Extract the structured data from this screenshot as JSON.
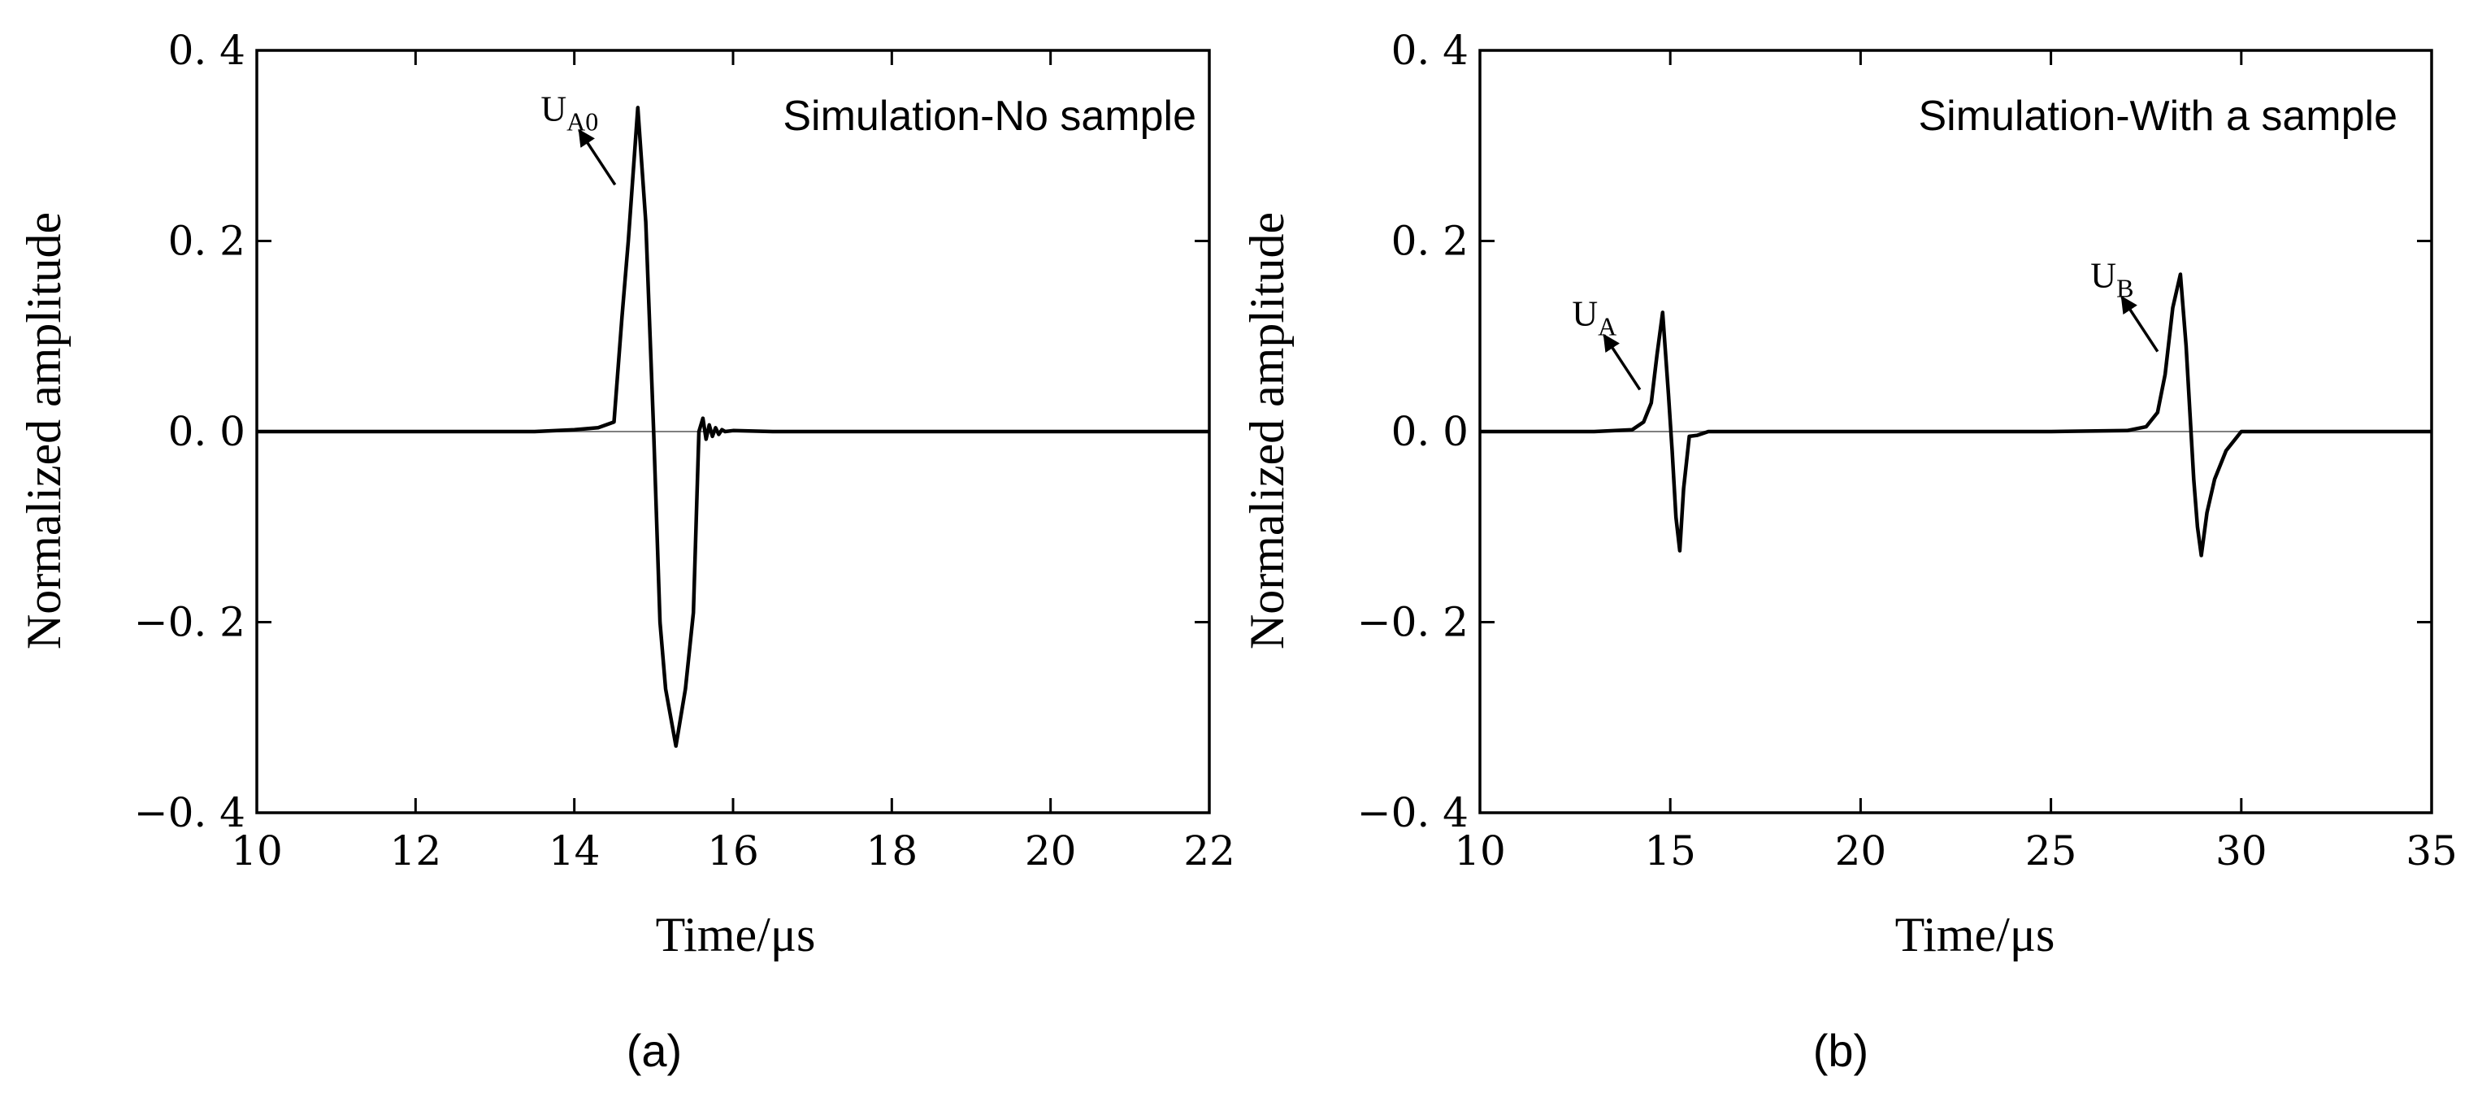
{
  "chart_data": [
    {
      "type": "line",
      "panel": "(a)",
      "title": "",
      "annotation": "Simulation-No sample",
      "xlabel": "Time/μs",
      "ylabel": "Normalized amplitude",
      "xlim": [
        10,
        22
      ],
      "ylim": [
        -0.4,
        0.4
      ],
      "xticks": [
        10,
        12,
        14,
        16,
        18,
        20,
        22
      ],
      "xtick_labels": [
        "10",
        "12",
        "14",
        "16",
        "18",
        "20",
        "22"
      ],
      "yticks": [
        0.4,
        0.2,
        0.0,
        -0.2,
        -0.4
      ],
      "ytick_labels": [
        "0. 4",
        "0. 2",
        "0. 0",
        "−0. 2",
        "−0. 4"
      ],
      "grid": false,
      "zero_line": true,
      "series": [
        {
          "name": "Simulation-No sample",
          "x": [
            10.0,
            12.0,
            13.5,
            14.0,
            14.3,
            14.5,
            14.6,
            14.68,
            14.8,
            14.9,
            15.0,
            15.08,
            15.15,
            15.28,
            15.4,
            15.5,
            15.57,
            15.62,
            15.66,
            15.7,
            15.74,
            15.78,
            15.82,
            15.86,
            15.9,
            16.0,
            16.5,
            18.0,
            22.0
          ],
          "y": [
            0.0,
            0.0,
            0.0,
            0.002,
            0.004,
            0.01,
            0.12,
            0.2,
            0.34,
            0.22,
            0.0,
            -0.2,
            -0.27,
            -0.33,
            -0.27,
            -0.19,
            0.0,
            0.014,
            -0.008,
            0.007,
            -0.005,
            0.004,
            -0.003,
            0.002,
            0.0,
            0.001,
            0.0,
            0.0,
            0.0
          ]
        }
      ],
      "peaks": [
        {
          "label_main": "U",
          "label_sub": "A0",
          "x": 14.8,
          "y": 0.34
        }
      ]
    },
    {
      "type": "line",
      "panel": "(b)",
      "title": "",
      "annotation": "Simulation-With a sample",
      "xlabel": "Time/μs",
      "ylabel": "Normalized amplitude",
      "xlim": [
        10,
        35
      ],
      "ylim": [
        -0.4,
        0.4
      ],
      "xticks": [
        10,
        15,
        20,
        25,
        30,
        35
      ],
      "xtick_labels": [
        "10",
        "15",
        "20",
        "25",
        "30",
        "35"
      ],
      "yticks": [
        0.4,
        0.2,
        0.0,
        -0.2,
        -0.4
      ],
      "ytick_labels": [
        "0. 4",
        "0. 2",
        "0. 0",
        "−0. 2",
        "−0. 4"
      ],
      "grid": false,
      "zero_line": true,
      "series": [
        {
          "name": "Simulation-With a sample",
          "x": [
            10.0,
            13.0,
            14.0,
            14.3,
            14.5,
            14.65,
            14.8,
            14.95,
            15.05,
            15.15,
            15.25,
            15.35,
            15.5,
            15.7,
            16.0,
            18.0,
            25.0,
            27.0,
            27.5,
            27.8,
            28.0,
            28.2,
            28.4,
            28.55,
            28.65,
            28.75,
            28.85,
            28.95,
            29.1,
            29.3,
            29.6,
            30.0,
            35.0
          ],
          "y": [
            0.0,
            0.0,
            0.002,
            0.01,
            0.03,
            0.08,
            0.125,
            0.04,
            -0.02,
            -0.09,
            -0.125,
            -0.06,
            -0.005,
            -0.004,
            0.0,
            0.0,
            0.0,
            0.001,
            0.005,
            0.02,
            0.06,
            0.13,
            0.165,
            0.09,
            0.02,
            -0.05,
            -0.1,
            -0.13,
            -0.085,
            -0.05,
            -0.02,
            0.0,
            0.0
          ]
        }
      ],
      "peaks": [
        {
          "label_main": "U",
          "label_sub": "A",
          "x": 14.8,
          "y": 0.125
        },
        {
          "label_main": "U",
          "label_sub": "B",
          "x": 28.4,
          "y": 0.165
        }
      ]
    }
  ]
}
